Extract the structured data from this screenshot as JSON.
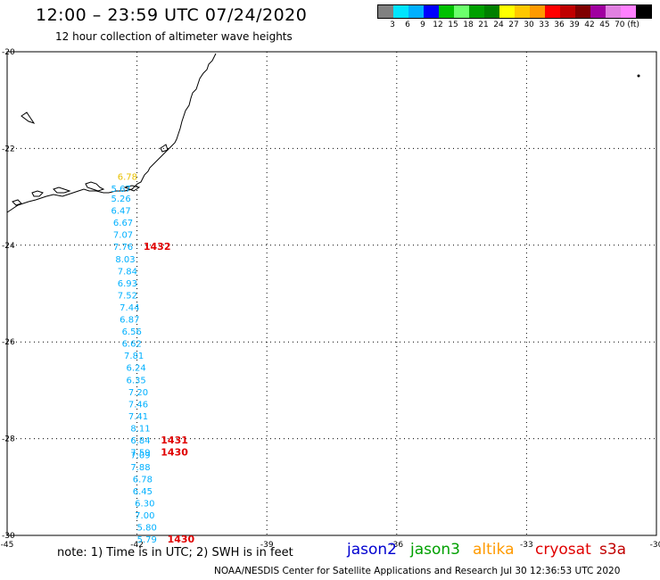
{
  "header": {
    "title": "12:00 – 23:59 UTC 07/24/2020",
    "subtitle": "12 hour collection of altimeter wave heights"
  },
  "legend": {
    "colors": [
      "#808080",
      "#00e5ff",
      "#00b0ff",
      "#0000ff",
      "#00c000",
      "#6cff6c",
      "#00a000",
      "#008000",
      "#ffff00",
      "#ffc800",
      "#ff9a00",
      "#ff0000",
      "#c00000",
      "#800000",
      "#a000a0",
      "#e080e0",
      "#ff80ff",
      "#000000"
    ],
    "labels": [
      "3",
      "6",
      "9",
      "12",
      "15",
      "18",
      "21",
      "24",
      "27",
      "30",
      "33",
      "36",
      "39",
      "42",
      "45",
      "70 (ft)"
    ],
    "unit": "(ft)"
  },
  "map": {
    "lat_ticks": [
      "-20",
      "-22",
      "-24",
      "-26",
      "-28",
      "-30"
    ],
    "lon_ticks": [
      "-45",
      "-42",
      "-39",
      "-36",
      "-33",
      "-30"
    ],
    "wave_heights": [
      {
        "lon": -42.45,
        "lat": -22.65,
        "value": "6.78",
        "color": "#e8c000"
      },
      {
        "lon": -42.6,
        "lat": -22.9,
        "value": "5.67",
        "color": "#00b0ff"
      },
      {
        "lon": -42.6,
        "lat": -23.1,
        "value": "5.26",
        "color": "#00b0ff"
      },
      {
        "lon": -42.6,
        "lat": -23.35,
        "value": "6.47",
        "color": "#00b0ff"
      },
      {
        "lon": -42.55,
        "lat": -23.6,
        "value": "6.67",
        "color": "#00b0ff"
      },
      {
        "lon": -42.55,
        "lat": -23.85,
        "value": "7.07",
        "color": "#00b0ff"
      },
      {
        "lon": -42.55,
        "lat": -24.1,
        "value": "7.76",
        "color": "#00b0ff"
      },
      {
        "lon": -42.5,
        "lat": -24.35,
        "value": "8.03",
        "color": "#00b0ff"
      },
      {
        "lon": -42.45,
        "lat": -24.6,
        "value": "7.84",
        "color": "#00b0ff"
      },
      {
        "lon": -42.45,
        "lat": -24.85,
        "value": "6.93",
        "color": "#00b0ff"
      },
      {
        "lon": -42.45,
        "lat": -25.1,
        "value": "7.52",
        "color": "#00b0ff"
      },
      {
        "lon": -42.4,
        "lat": -25.35,
        "value": "7.44",
        "color": "#00b0ff"
      },
      {
        "lon": -42.4,
        "lat": -25.6,
        "value": "6.87",
        "color": "#00b0ff"
      },
      {
        "lon": -42.35,
        "lat": -25.85,
        "value": "6.56",
        "color": "#00b0ff"
      },
      {
        "lon": -42.35,
        "lat": -26.1,
        "value": "6.62",
        "color": "#00b0ff"
      },
      {
        "lon": -42.3,
        "lat": -26.35,
        "value": "7.81",
        "color": "#00b0ff"
      },
      {
        "lon": -42.25,
        "lat": -26.6,
        "value": "6.24",
        "color": "#00b0ff"
      },
      {
        "lon": -42.25,
        "lat": -26.85,
        "value": "6.35",
        "color": "#00b0ff"
      },
      {
        "lon": -42.2,
        "lat": -27.1,
        "value": "7.20",
        "color": "#00b0ff"
      },
      {
        "lon": -42.2,
        "lat": -27.35,
        "value": "7.46",
        "color": "#00b0ff"
      },
      {
        "lon": -42.2,
        "lat": -27.6,
        "value": "7.41",
        "color": "#00b0ff"
      },
      {
        "lon": -42.15,
        "lat": -27.85,
        "value": "8.11",
        "color": "#00b0ff"
      },
      {
        "lon": -42.15,
        "lat": -28.1,
        "value": "6.84",
        "color": "#00b0ff"
      },
      {
        "lon": -42.15,
        "lat": -28.35,
        "value": "7.59",
        "color": "#00b0ff"
      },
      {
        "lon": -42.15,
        "lat": -28.4,
        "value": "7.09",
        "color": "#00b0ff"
      },
      {
        "lon": -42.15,
        "lat": -28.65,
        "value": "7.88",
        "color": "#00b0ff"
      },
      {
        "lon": -42.1,
        "lat": -28.9,
        "value": "6.78",
        "color": "#00b0ff"
      },
      {
        "lon": -42.1,
        "lat": -29.15,
        "value": "6.45",
        "color": "#00b0ff"
      },
      {
        "lon": -42.05,
        "lat": -29.4,
        "value": "6.30",
        "color": "#00b0ff"
      },
      {
        "lon": -42.05,
        "lat": -29.65,
        "value": "7.00",
        "color": "#00b0ff"
      },
      {
        "lon": -42.0,
        "lat": -29.9,
        "value": "5.80",
        "color": "#00b0ff"
      },
      {
        "lon": -42.0,
        "lat": -30.15,
        "value": "5.79",
        "color": "#00b0ff"
      }
    ],
    "times": [
      {
        "lon": -41.85,
        "lat": -24.1,
        "value": "1432",
        "color": "#e00000"
      },
      {
        "lon": -41.45,
        "lat": -28.1,
        "value": "1431",
        "color": "#e00000"
      },
      {
        "lon": -41.45,
        "lat": -28.35,
        "value": "1430",
        "color": "#e00000"
      },
      {
        "lon": -41.3,
        "lat": -30.15,
        "value": "1430",
        "color": "#e00000"
      }
    ]
  },
  "footer": {
    "note": "note:  1) Time is in UTC;  2) SWH is in feet",
    "satellites": [
      {
        "name": "jason2",
        "color": "#0000d0"
      },
      {
        "name": "jason3",
        "color": "#00a000"
      },
      {
        "name": "altika",
        "color": "#ff9a00"
      },
      {
        "name": "cryosat",
        "color": "#e00000"
      },
      {
        "name": "s3a",
        "color": "#c00000"
      }
    ],
    "credit": "NOAA/NESDIS Center for Satellite Applications and Research    Jul 30 12:36:53 UTC 2020"
  }
}
